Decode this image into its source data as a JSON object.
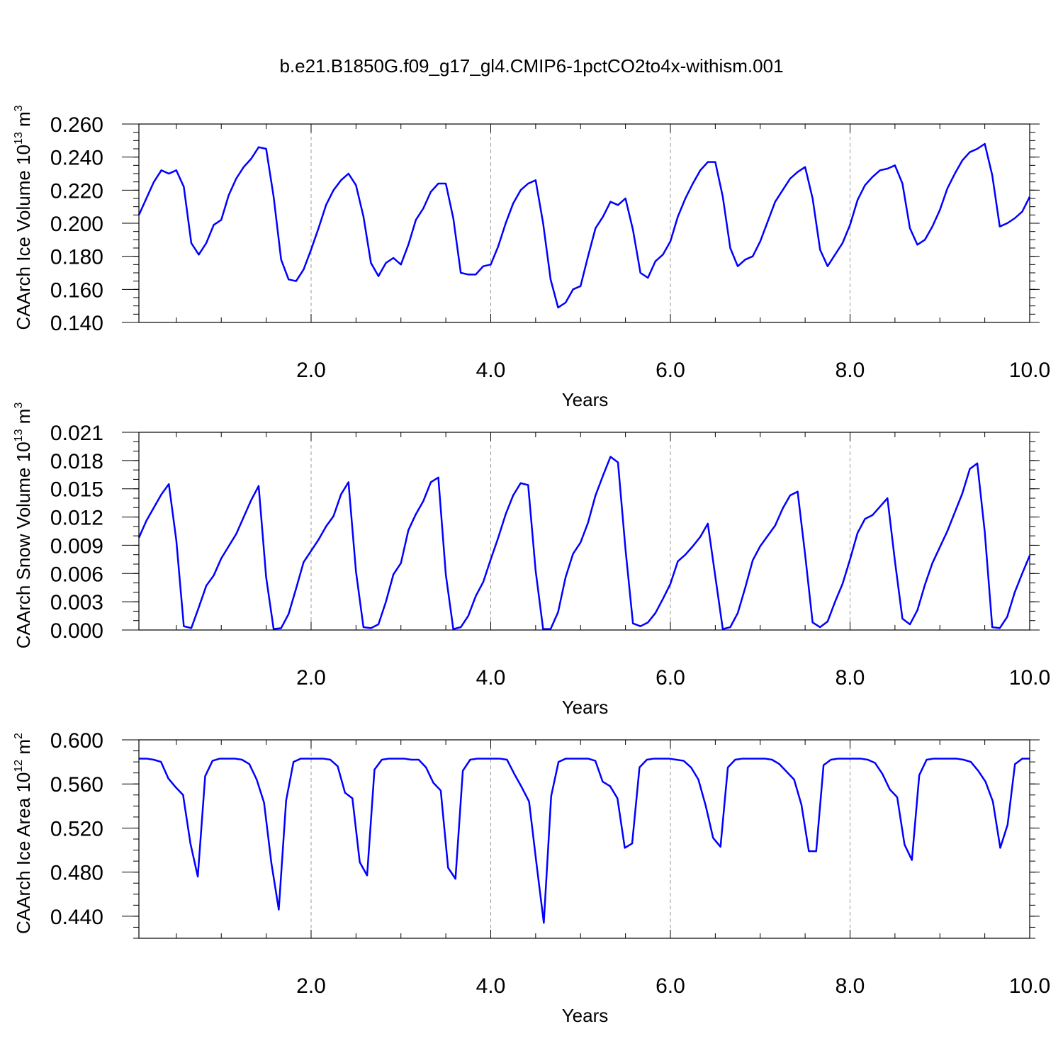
{
  "figure": {
    "title": "b.e21.B1850G.f09_g17_gl4.CMIP6-1pctCO2to4x-withism.001"
  },
  "chart_data": [
    {
      "type": "line",
      "xlabel": "Years",
      "ylabel_base": "CAArch Ice Volume 10",
      "ylabel_exp1": "13",
      "ylabel_unit": " m",
      "ylabel_exp2": "3",
      "xlim": [
        0.083,
        10.0
      ],
      "ylim": [
        0.14,
        0.26
      ],
      "x_ticks": [
        "2.0",
        "4.0",
        "6.0",
        "8.0",
        "10.0"
      ],
      "x_tick_values": [
        2,
        4,
        6,
        8,
        10
      ],
      "y_ticks": [
        "0.140",
        "0.160",
        "0.180",
        "0.200",
        "0.220",
        "0.240",
        "0.260"
      ],
      "y_tick_values": [
        0.14,
        0.16,
        0.18,
        0.2,
        0.22,
        0.24,
        0.26
      ],
      "y_minor_step": 0.005,
      "grid": "dashed-vertical-at-major-x",
      "line_color": "#0000ff",
      "series": [
        {
          "values": [
            0.205,
            0.215,
            0.225,
            0.232,
            0.23,
            0.232,
            0.222,
            0.188,
            0.181,
            0.188,
            0.199,
            0.202,
            0.217,
            0.227,
            0.234,
            0.239,
            0.246,
            0.245,
            0.216,
            0.178,
            0.166,
            0.165,
            0.172,
            0.184,
            0.197,
            0.211,
            0.22,
            0.226,
            0.23,
            0.223,
            0.204,
            0.176,
            0.168,
            0.176,
            0.179,
            0.175,
            0.187,
            0.202,
            0.209,
            0.219,
            0.224,
            0.224,
            0.203,
            0.17,
            0.169,
            0.169,
            0.174,
            0.175,
            0.186,
            0.2,
            0.212,
            0.22,
            0.224,
            0.226,
            0.2,
            0.166,
            0.149,
            0.152,
            0.16,
            0.162,
            0.18,
            0.197,
            0.204,
            0.213,
            0.211,
            0.215,
            0.196,
            0.17,
            0.167,
            0.177,
            0.181,
            0.189,
            0.204,
            0.215,
            0.224,
            0.232,
            0.237,
            0.237,
            0.216,
            0.185,
            0.174,
            0.178,
            0.18,
            0.189,
            0.201,
            0.213,
            0.22,
            0.227,
            0.231,
            0.234,
            0.215,
            0.184,
            0.174,
            0.181,
            0.188,
            0.199,
            0.214,
            0.223,
            0.228,
            0.232,
            0.233,
            0.235,
            0.224,
            0.197,
            0.187,
            0.19,
            0.198,
            0.208,
            0.221,
            0.23,
            0.238,
            0.243,
            0.245,
            0.248,
            0.229,
            0.198,
            0.2,
            0.203,
            0.207,
            0.216
          ]
        }
      ]
    },
    {
      "type": "line",
      "xlabel": "Years",
      "ylabel_base": "CAArch Snow Volume 10",
      "ylabel_exp1": "13",
      "ylabel_unit": " m",
      "ylabel_exp2": "3",
      "xlim": [
        0.083,
        10.0
      ],
      "ylim": [
        0.0,
        0.021
      ],
      "x_ticks": [
        "2.0",
        "4.0",
        "6.0",
        "8.0",
        "10.0"
      ],
      "x_tick_values": [
        2,
        4,
        6,
        8,
        10
      ],
      "y_ticks": [
        "0.000",
        "0.003",
        "0.006",
        "0.009",
        "0.012",
        "0.015",
        "0.018",
        "0.021"
      ],
      "y_tick_values": [
        0.0,
        0.003,
        0.006,
        0.009,
        0.012,
        0.015,
        0.018,
        0.021
      ],
      "y_minor_step": 0.001,
      "grid": "dashed-vertical-at-major-x",
      "line_color": "#0000ff",
      "series": [
        {
          "values": [
            0.0098,
            0.0116,
            0.013,
            0.0144,
            0.0155,
            0.0095,
            0.0004,
            0.0002,
            0.0024,
            0.0047,
            0.0058,
            0.0076,
            0.0089,
            0.0102,
            0.012,
            0.0138,
            0.0153,
            0.0056,
            0.0001,
            0.0002,
            0.0017,
            0.0044,
            0.0072,
            0.0084,
            0.0096,
            0.011,
            0.0121,
            0.0144,
            0.0157,
            0.0062,
            0.0003,
            0.0002,
            0.0006,
            0.003,
            0.0059,
            0.0071,
            0.0106,
            0.0123,
            0.0137,
            0.0157,
            0.0162,
            0.0059,
            0.0001,
            0.0003,
            0.0015,
            0.0036,
            0.0051,
            0.0075,
            0.0098,
            0.0123,
            0.0143,
            0.0156,
            0.0154,
            0.0063,
            0.0001,
            0.0001,
            0.0019,
            0.0056,
            0.0081,
            0.0093,
            0.0114,
            0.0143,
            0.0164,
            0.0184,
            0.0178,
            0.0086,
            0.0007,
            0.0004,
            0.0008,
            0.0018,
            0.0033,
            0.0049,
            0.0073,
            0.008,
            0.0089,
            0.0099,
            0.0113,
            0.0057,
            0.0001,
            0.0003,
            0.0018,
            0.0045,
            0.0074,
            0.0089,
            0.01,
            0.0111,
            0.0129,
            0.0143,
            0.0147,
            0.008,
            0.0008,
            0.0003,
            0.0009,
            0.003,
            0.0049,
            0.0075,
            0.0103,
            0.0118,
            0.0122,
            0.0131,
            0.014,
            0.0073,
            0.0012,
            0.0006,
            0.0021,
            0.0048,
            0.0071,
            0.0088,
            0.0105,
            0.0125,
            0.0145,
            0.0171,
            0.0177,
            0.0104,
            0.0003,
            0.0002,
            0.0014,
            0.004,
            0.006,
            0.0079
          ]
        }
      ]
    },
    {
      "type": "line",
      "xlabel": "Years",
      "ylabel_base": "CAArch Ice Area 10",
      "ylabel_exp1": "12",
      "ylabel_unit": " m",
      "ylabel_exp2": "2",
      "xlim": [
        0.083,
        10.0
      ],
      "ylim": [
        0.42,
        0.6
      ],
      "x_ticks": [
        "2.0",
        "4.0",
        "6.0",
        "8.0",
        "10.0"
      ],
      "x_tick_values": [
        2,
        4,
        6,
        8,
        10
      ],
      "y_ticks": [
        "0.440",
        "0.480",
        "0.520",
        "0.560",
        "0.600"
      ],
      "y_tick_values": [
        0.44,
        0.48,
        0.52,
        0.56,
        0.6
      ],
      "y_minor_step": 0.01,
      "grid": "dashed-vertical-at-major-x",
      "line_color": "#0000ff",
      "series": [
        {
          "values": [
            0.583,
            0.583,
            0.582,
            0.58,
            0.565,
            0.557,
            0.55,
            0.506,
            0.476,
            0.567,
            0.581,
            0.583,
            0.583,
            0.583,
            0.582,
            0.578,
            0.564,
            0.543,
            0.488,
            0.446,
            0.545,
            0.58,
            0.583,
            0.583,
            0.583,
            0.583,
            0.582,
            0.576,
            0.552,
            0.547,
            0.489,
            0.477,
            0.573,
            0.582,
            0.583,
            0.583,
            0.583,
            0.582,
            0.582,
            0.575,
            0.561,
            0.554,
            0.484,
            0.474,
            0.572,
            0.582,
            0.583,
            0.583,
            0.583,
            0.583,
            0.582,
            0.569,
            0.557,
            0.544,
            0.488,
            0.434,
            0.549,
            0.58,
            0.583,
            0.583,
            0.583,
            0.583,
            0.581,
            0.562,
            0.558,
            0.547,
            0.502,
            0.506,
            0.575,
            0.582,
            0.583,
            0.583,
            0.583,
            0.582,
            0.581,
            0.575,
            0.564,
            0.54,
            0.511,
            0.503,
            0.575,
            0.582,
            0.583,
            0.583,
            0.583,
            0.583,
            0.582,
            0.578,
            0.571,
            0.564,
            0.541,
            0.499,
            0.499,
            0.577,
            0.582,
            0.583,
            0.583,
            0.583,
            0.583,
            0.582,
            0.579,
            0.569,
            0.555,
            0.548,
            0.505,
            0.491,
            0.568,
            0.582,
            0.583,
            0.583,
            0.583,
            0.583,
            0.582,
            0.58,
            0.572,
            0.562,
            0.544,
            0.502,
            0.523,
            0.578,
            0.583,
            0.583
          ]
        }
      ]
    }
  ]
}
